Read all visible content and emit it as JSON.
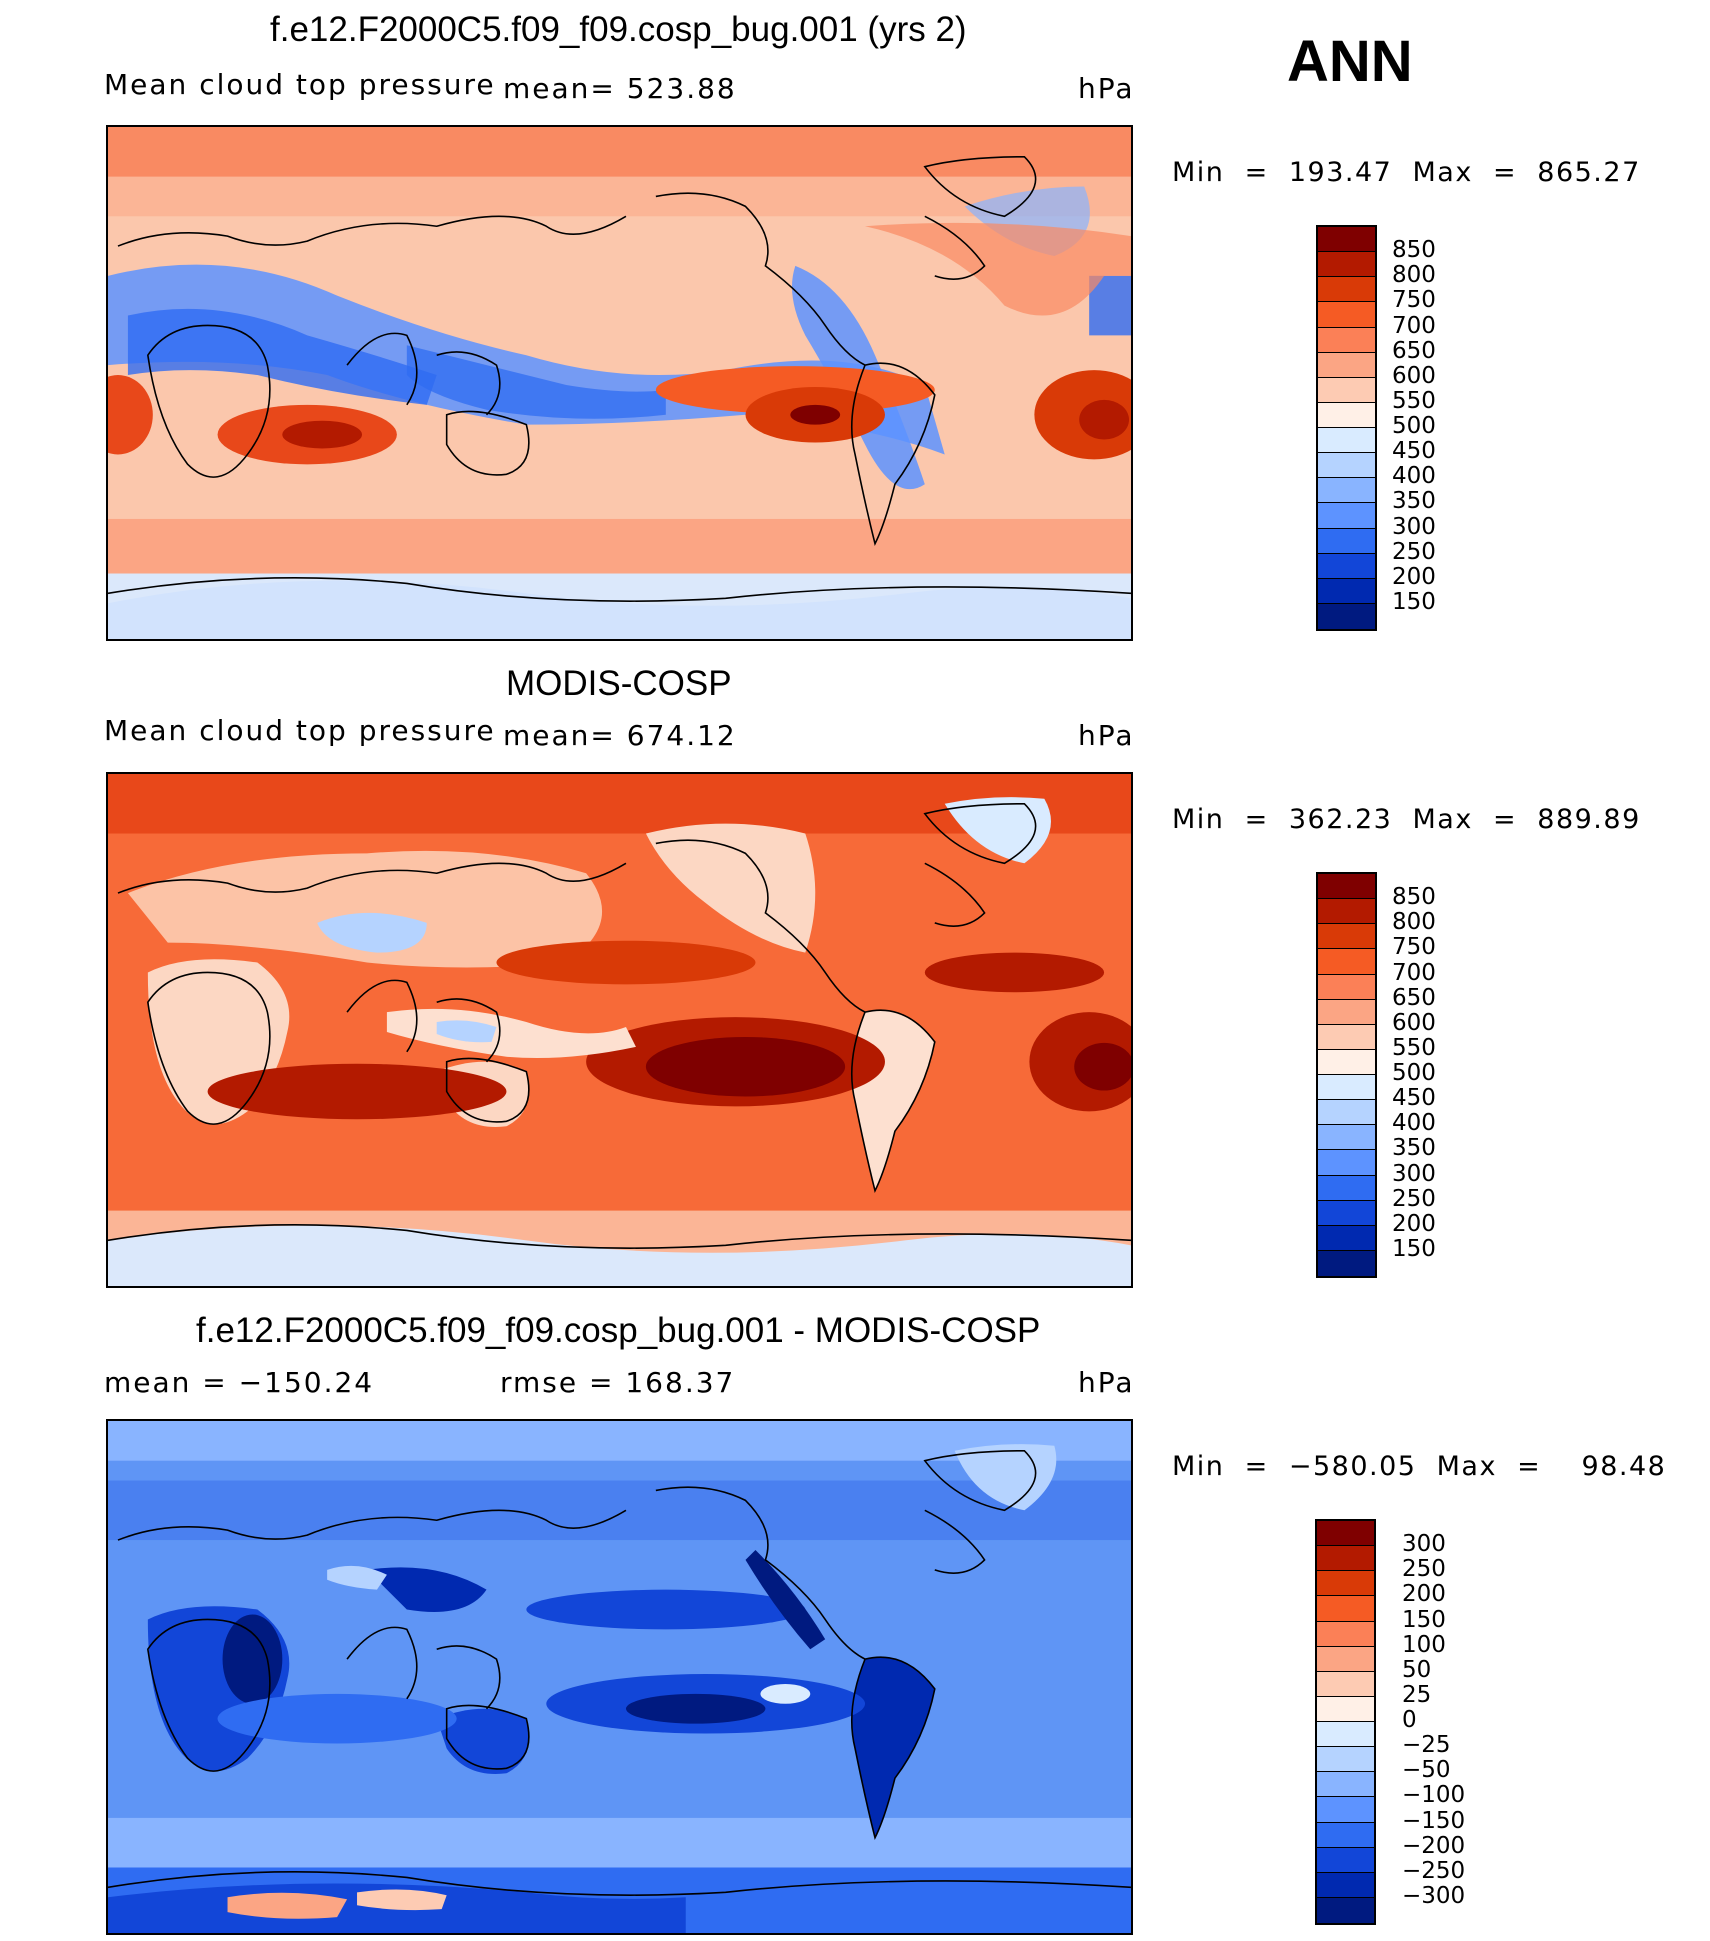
{
  "season": "ANN",
  "panels": [
    {
      "title": "f.e12.F2000C5.f09_f09.cosp_bug.001 (yrs 2)",
      "left_label": "Mean cloud top pressure",
      "center_label": "mean=  523.88",
      "units": "hPa",
      "minmax": "Min  =  193.47  Max  =  865.27",
      "base_color": "#fbc7ac",
      "colorbar": {
        "labels": [
          "850",
          "800",
          "750",
          "700",
          "650",
          "600",
          "550",
          "500",
          "450",
          "400",
          "350",
          "300",
          "250",
          "200",
          "150"
        ],
        "colors": [
          "#7f0000",
          "#b31a00",
          "#d93a07",
          "#f55b24",
          "#fb8057",
          "#fba584",
          "#fdcbb3",
          "#fff0e7",
          "#d9ebff",
          "#b5d3ff",
          "#89b4ff",
          "#5d93ff",
          "#2f6cf2",
          "#1246d8",
          "#0029b0",
          "#001a80"
        ]
      },
      "chart_data": {
        "type": "heatmap",
        "title": "f.e12.F2000C5.f09_f09.cosp_bug.001 (yrs 2)",
        "variable": "Mean cloud top pressure",
        "units": "hPa",
        "mean": 523.88,
        "min": 193.47,
        "max": 865.27,
        "levels": [
          150,
          200,
          250,
          300,
          350,
          400,
          450,
          500,
          550,
          600,
          650,
          700,
          750,
          800,
          850
        ]
      }
    },
    {
      "title": "MODIS-COSP",
      "left_label": "Mean cloud top pressure",
      "center_label": "mean=  674.12",
      "units": "hPa",
      "minmax": "Min  =  362.23  Max  =  889.89",
      "base_color": "#f76a38",
      "colorbar": {
        "labels": [
          "850",
          "800",
          "750",
          "700",
          "650",
          "600",
          "550",
          "500",
          "450",
          "400",
          "350",
          "300",
          "250",
          "200",
          "150"
        ],
        "colors": [
          "#7f0000",
          "#b31a00",
          "#d93a07",
          "#f55b24",
          "#fb8057",
          "#fba584",
          "#fdcbb3",
          "#fff0e7",
          "#d9ebff",
          "#b5d3ff",
          "#89b4ff",
          "#5d93ff",
          "#2f6cf2",
          "#1246d8",
          "#0029b0",
          "#001a80"
        ]
      },
      "chart_data": {
        "type": "heatmap",
        "title": "MODIS-COSP",
        "variable": "Mean cloud top pressure",
        "units": "hPa",
        "mean": 674.12,
        "min": 362.23,
        "max": 889.89,
        "levels": [
          150,
          200,
          250,
          300,
          350,
          400,
          450,
          500,
          550,
          600,
          650,
          700,
          750,
          800,
          850
        ]
      }
    },
    {
      "title": "f.e12.F2000C5.f09_f09.cosp_bug.001 - MODIS-COSP",
      "left_label": "mean  =  −150.24",
      "center_label": "rmse  =  168.37",
      "units": "hPa",
      "minmax": "Min  =  −580.05  Max  =    98.48",
      "base_color": "#5f95f5",
      "colorbar": {
        "labels": [
          "300",
          "250",
          "200",
          "150",
          "100",
          "50",
          "25",
          "0",
          "−25",
          "−50",
          "−100",
          "−150",
          "−200",
          "−250",
          "−300"
        ],
        "colors": [
          "#7f0000",
          "#b31a00",
          "#d93a07",
          "#f55b24",
          "#fb8057",
          "#fba584",
          "#fdcbb3",
          "#fff0e7",
          "#d9ebff",
          "#b5d3ff",
          "#89b4ff",
          "#5d93ff",
          "#2f6cf2",
          "#1246d8",
          "#0029b0",
          "#001a80"
        ]
      },
      "chart_data": {
        "type": "heatmap",
        "title": "f.e12.F2000C5.f09_f09.cosp_bug.001 - MODIS-COSP",
        "units": "hPa",
        "mean": -150.24,
        "rmse": 168.37,
        "min": -580.05,
        "max": 98.48,
        "levels": [
          -300,
          -250,
          -200,
          -150,
          -100,
          -50,
          -25,
          0,
          25,
          50,
          100,
          150,
          200,
          250,
          300
        ]
      }
    }
  ]
}
